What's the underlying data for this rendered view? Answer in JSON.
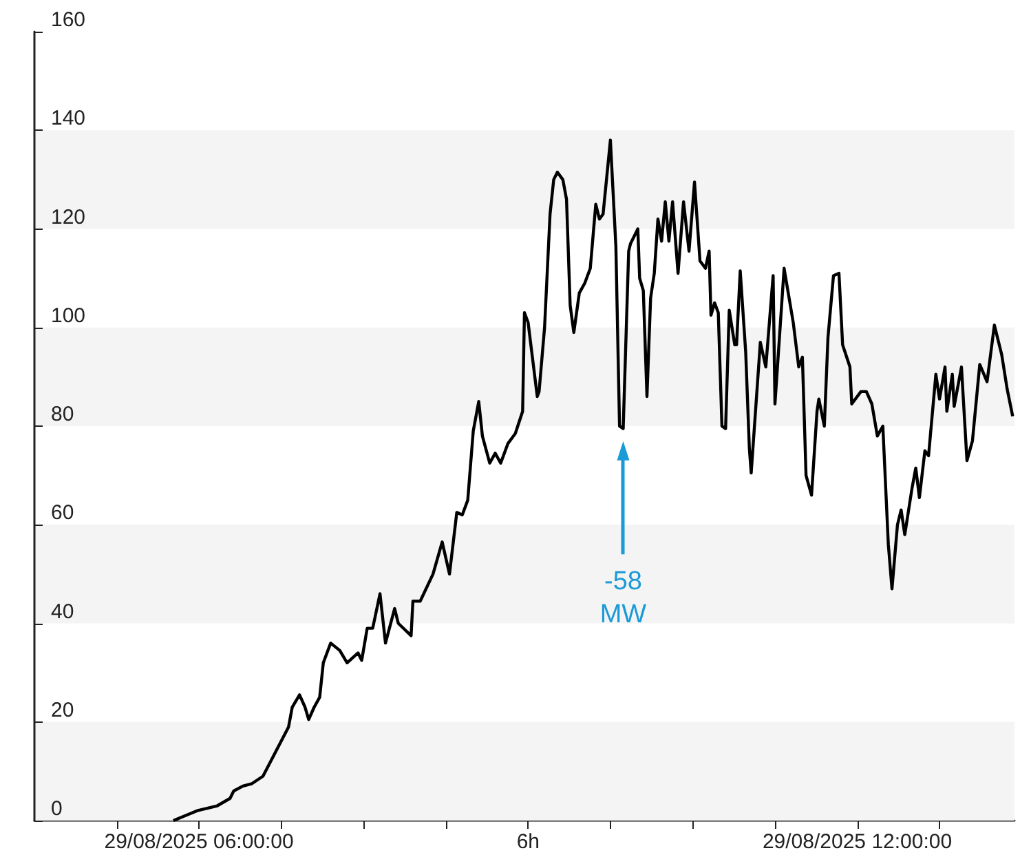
{
  "chart_data": {
    "type": "line",
    "xlim": [
      "2025-08-29T04:30",
      "2025-08-29T13:26"
    ],
    "ylim": [
      0,
      160
    ],
    "xticks": [
      {
        "value": "2025-08-29T05:15",
        "label": null
      },
      {
        "value": "2025-08-29T06:00",
        "label": "29/08/2025 06:00:00"
      },
      {
        "value": "2025-08-29T06:45",
        "label": null
      },
      {
        "value": "2025-08-29T07:30",
        "label": null
      },
      {
        "value": "2025-08-29T08:15",
        "label": null
      },
      {
        "value": "2025-08-29T09:00",
        "label": "6h"
      },
      {
        "value": "2025-08-29T09:45",
        "label": null
      },
      {
        "value": "2025-08-29T10:30",
        "label": null
      },
      {
        "value": "2025-08-29T11:15",
        "label": null
      },
      {
        "value": "2025-08-29T12:00",
        "label": "29/08/2025 12:00:00"
      },
      {
        "value": "2025-08-29T12:45",
        "label": null
      }
    ],
    "yticks": [
      0,
      20,
      40,
      60,
      80,
      100,
      120,
      140,
      160
    ],
    "line_style": "solid",
    "bands": [
      {
        "axis": "y",
        "from": 0,
        "to": 20,
        "color": "#f4f4f4"
      },
      {
        "axis": "y",
        "from": 40,
        "to": 60,
        "color": "#f4f4f4"
      },
      {
        "axis": "y",
        "from": 80,
        "to": 100,
        "color": "#f4f4f4"
      },
      {
        "axis": "y",
        "from": 120,
        "to": 140,
        "color": "#f4f4f4"
      }
    ],
    "annotations": [
      {
        "text": "-58 MW",
        "x": "2025-08-29T09:52",
        "y": 75
      }
    ],
    "series": [
      {
        "color": "#000000",
        "x": [
          "2025-08-29T05:46",
          "2025-08-29T05:59",
          "2025-08-29T06:10",
          "2025-08-29T06:17",
          "2025-08-29T06:19",
          "2025-08-29T06:24",
          "2025-08-29T06:29",
          "2025-08-29T06:35",
          "2025-08-29T06:42",
          "2025-08-29T06:49",
          "2025-08-29T06:51",
          "2025-08-29T06:55",
          "2025-08-29T06:58",
          "2025-08-29T07:00",
          "2025-08-29T07:03",
          "2025-08-29T07:06",
          "2025-08-29T07:08",
          "2025-08-29T07:12",
          "2025-08-29T07:17",
          "2025-08-29T07:21",
          "2025-08-29T07:27",
          "2025-08-29T07:29",
          "2025-08-29T07:32",
          "2025-08-29T07:35",
          "2025-08-29T07:39",
          "2025-08-29T07:42",
          "2025-08-29T07:47",
          "2025-08-29T07:49",
          "2025-08-29T07:56",
          "2025-08-29T07:57",
          "2025-08-29T08:01",
          "2025-08-29T08:08",
          "2025-08-29T08:13",
          "2025-08-29T08:17",
          "2025-08-29T08:21",
          "2025-08-29T08:24",
          "2025-08-29T08:27",
          "2025-08-29T08:30",
          "2025-08-29T08:33",
          "2025-08-29T08:35",
          "2025-08-29T08:39",
          "2025-08-29T08:42",
          "2025-08-29T08:45",
          "2025-08-29T08:49",
          "2025-08-29T08:53",
          "2025-08-29T08:57",
          "2025-08-29T08:58",
          "2025-08-29T09:00",
          "2025-08-29T09:05",
          "2025-08-29T09:06",
          "2025-08-29T09:09",
          "2025-08-29T09:12",
          "2025-08-29T09:14",
          "2025-08-29T09:16",
          "2025-08-29T09:19",
          "2025-08-29T09:21",
          "2025-08-29T09:23",
          "2025-08-29T09:25",
          "2025-08-29T09:28",
          "2025-08-29T09:31",
          "2025-08-29T09:34",
          "2025-08-29T09:37",
          "2025-08-29T09:39",
          "2025-08-29T09:41",
          "2025-08-29T09:45",
          "2025-08-29T09:48",
          "2025-08-29T09:50",
          "2025-08-29T09:52",
          "2025-08-29T09:55",
          "2025-08-29T09:56",
          "2025-08-29T10:00",
          "2025-08-29T10:01",
          "2025-08-29T10:03",
          "2025-08-29T10:05",
          "2025-08-29T10:07",
          "2025-08-29T10:09",
          "2025-08-29T10:11",
          "2025-08-29T10:13",
          "2025-08-29T10:15",
          "2025-08-29T10:17",
          "2025-08-29T10:19",
          "2025-08-29T10:22",
          "2025-08-29T10:25",
          "2025-08-29T10:28",
          "2025-08-29T10:31",
          "2025-08-29T10:34",
          "2025-08-29T10:37",
          "2025-08-29T10:39",
          "2025-08-29T10:40",
          "2025-08-29T10:42",
          "2025-08-29T10:44",
          "2025-08-29T10:46",
          "2025-08-29T10:48",
          "2025-08-29T10:50",
          "2025-08-29T10:53",
          "2025-08-29T10:54",
          "2025-08-29T10:56",
          "2025-08-29T10:59",
          "2025-08-29T11:01",
          "2025-08-29T11:02",
          "2025-08-29T11:07",
          "2025-08-29T11:10",
          "2025-08-29T11:14",
          "2025-08-29T11:15",
          "2025-08-29T11:20",
          "2025-08-29T11:25",
          "2025-08-29T11:28",
          "2025-08-29T11:30",
          "2025-08-29T11:32",
          "2025-08-29T11:35",
          "2025-08-29T11:38",
          "2025-08-29T11:39",
          "2025-08-29T11:42",
          "2025-08-29T11:44",
          "2025-08-29T11:47",
          "2025-08-29T11:50",
          "2025-08-29T11:52",
          "2025-08-29T11:56",
          "2025-08-29T11:57",
          "2025-08-29T12:02",
          "2025-08-29T12:05",
          "2025-08-29T12:08",
          "2025-08-29T12:11",
          "2025-08-29T12:14",
          "2025-08-29T12:17",
          "2025-08-29T12:19",
          "2025-08-29T12:22",
          "2025-08-29T12:24",
          "2025-08-29T12:26",
          "2025-08-29T12:30",
          "2025-08-29T12:32",
          "2025-08-29T12:34",
          "2025-08-29T12:37",
          "2025-08-29T12:39",
          "2025-08-29T12:43",
          "2025-08-29T12:45",
          "2025-08-29T12:48",
          "2025-08-29T12:49",
          "2025-08-29T12:52",
          "2025-08-29T12:53",
          "2025-08-29T12:57",
          "2025-08-29T13:00",
          "2025-08-29T13:03",
          "2025-08-29T13:07",
          "2025-08-29T13:11",
          "2025-08-29T13:15",
          "2025-08-29T13:19",
          "2025-08-29T13:22",
          "2025-08-29T13:25"
        ],
        "values": [
          0,
          2,
          3,
          4.5,
          6,
          7,
          7.5,
          9,
          14,
          19,
          23,
          25.5,
          23,
          20.5,
          23,
          25,
          32,
          36,
          34.5,
          32,
          34,
          32.5,
          39,
          39,
          46,
          36,
          43,
          40,
          37.5,
          44.5,
          44.5,
          50,
          56.5,
          50,
          62.5,
          62,
          65,
          79,
          85,
          78,
          72.5,
          74.5,
          72.5,
          76.5,
          78.5,
          83,
          103,
          101,
          86,
          87,
          100,
          123,
          130,
          131.5,
          130,
          126,
          104.5,
          99,
          107,
          109,
          112,
          125,
          122,
          123,
          138,
          116.5,
          80,
          79.5,
          115.5,
          117,
          120,
          110,
          107.5,
          86,
          106,
          111,
          122,
          117.5,
          125.5,
          117.5,
          125.5,
          111,
          125.5,
          115.5,
          129.5,
          113.5,
          112,
          115.5,
          102.5,
          105,
          103,
          80,
          79.5,
          103.5,
          96.5,
          96.5,
          111.5,
          95,
          75.5,
          70.5,
          97,
          92,
          110.5,
          84.5,
          112,
          101,
          92,
          94,
          70,
          66,
          83,
          85.5,
          80,
          98,
          110.5,
          111,
          96.5,
          92,
          84.5,
          87,
          87,
          84.5,
          78,
          80,
          56,
          47,
          60,
          63,
          58,
          67.5,
          71.5,
          65.5,
          75,
          74,
          90.5,
          85.5,
          92,
          83,
          90.5,
          84,
          92,
          73,
          77,
          92.5,
          89,
          100.5,
          94.5,
          87.5,
          82
        ]
      }
    ]
  }
}
